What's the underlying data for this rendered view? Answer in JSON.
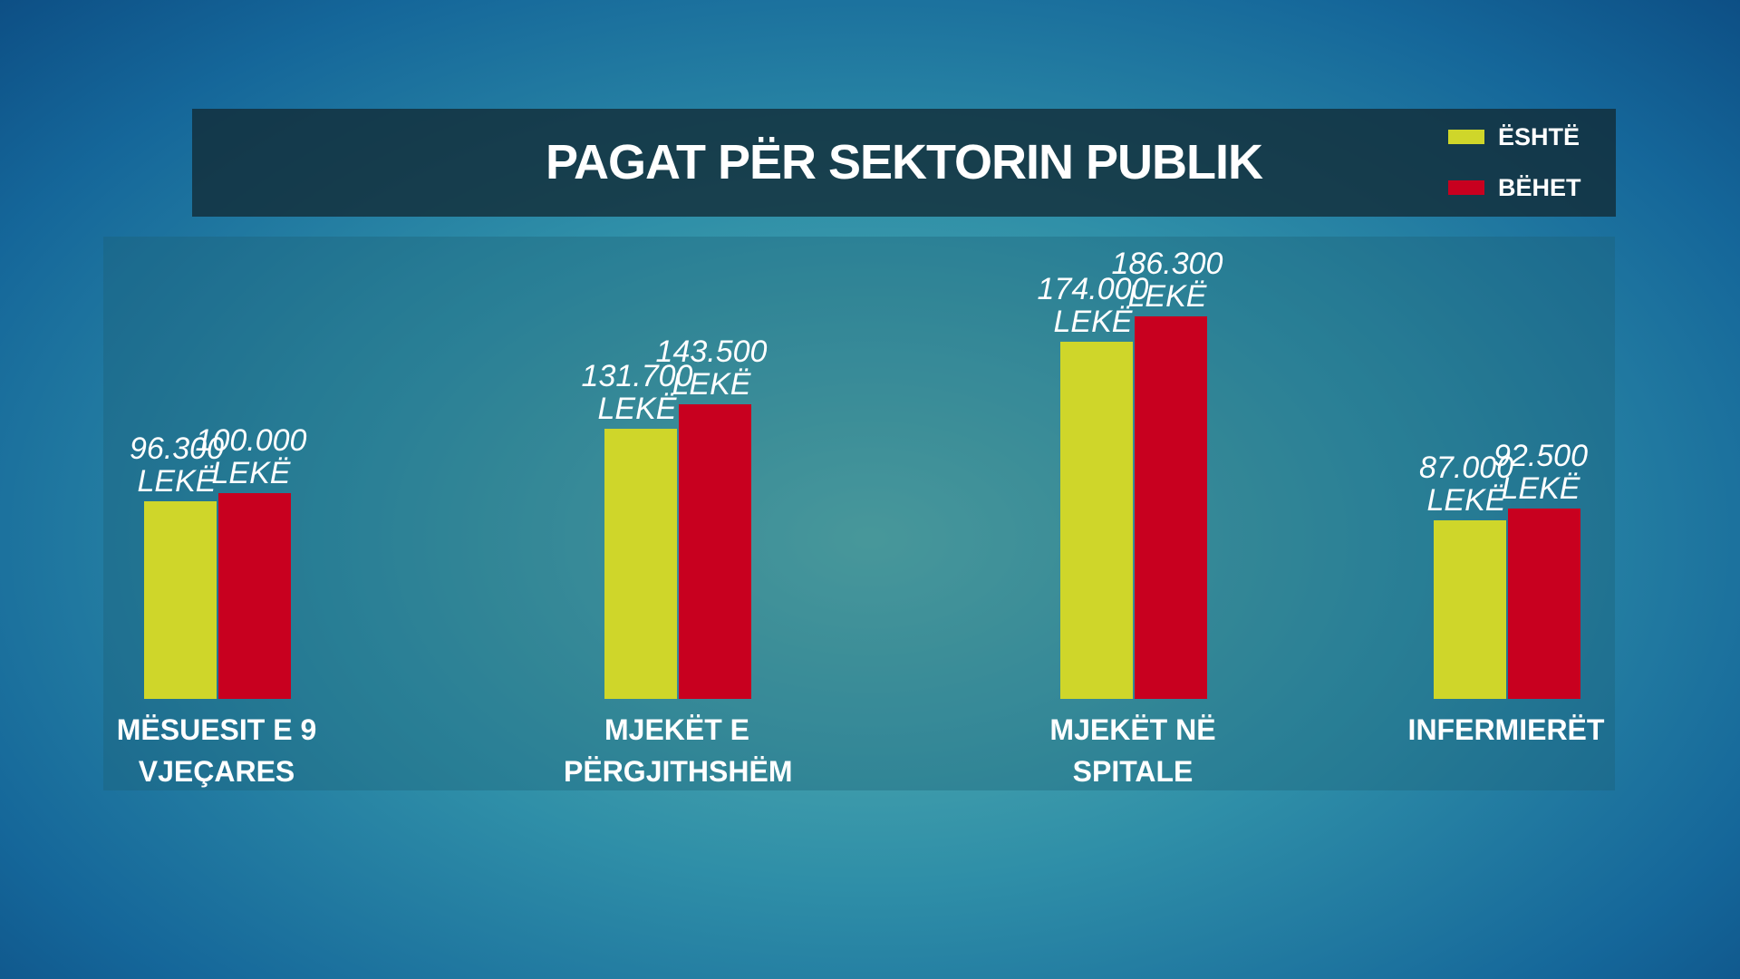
{
  "chart_data": {
    "type": "bar",
    "title": "PAGAT PËR SEKTORIN PUBLIK",
    "categories": [
      "MËSUESIT E 9 VJEÇARES",
      "MJEKËT E PËRGJITHSHËM",
      "MJEKËT NË SPITALE",
      "INFERMIERËT"
    ],
    "series": [
      {
        "name": "ËSHTË",
        "color": "#cfd62a",
        "values": [
          96300,
          131700,
          174000,
          87000
        ],
        "value_labels": [
          "96.300 LEKË",
          "131.700 LEKË",
          "174.000 LEKË",
          "87.000 LEKË"
        ]
      },
      {
        "name": "BËHET",
        "color": "#c8001f",
        "values": [
          100000,
          143500,
          186300,
          92500
        ],
        "value_labels": [
          "100.000 LEKË",
          "143.500 LEKË",
          "186.300 LEKË",
          "92.500 LEKË"
        ]
      }
    ],
    "legend": "top-right"
  }
}
